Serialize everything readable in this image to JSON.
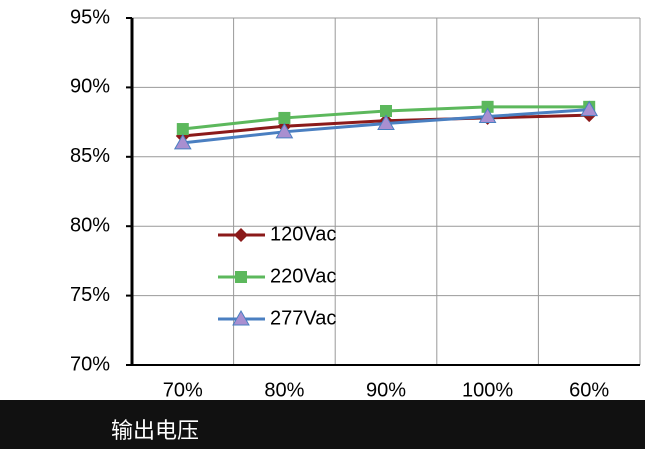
{
  "chart_data": {
    "type": "line",
    "x_label": "输出电压",
    "categories": [
      "70%",
      "80%",
      "90%",
      "100%",
      "60%"
    ],
    "series": [
      {
        "name": "120Vac",
        "color": "#8b1a1a",
        "marker": "diamond",
        "values": [
          86.5,
          87.2,
          87.6,
          87.8,
          88.0
        ]
      },
      {
        "name": "220Vac",
        "color": "#5cb85c",
        "marker": "square",
        "values": [
          87.0,
          87.8,
          88.3,
          88.6,
          88.6
        ]
      },
      {
        "name": "277Vac",
        "color": "#4a7fc1",
        "marker": "triangle",
        "values": [
          86.0,
          86.8,
          87.4,
          87.9,
          88.4
        ]
      }
    ],
    "ylim": [
      70,
      95
    ],
    "yticks": [
      {
        "value": 70,
        "label": "70%"
      },
      {
        "value": 75,
        "label": "75%"
      },
      {
        "value": 80,
        "label": "80%"
      },
      {
        "value": 85,
        "label": "85%"
      },
      {
        "value": 90,
        "label": "90%"
      },
      {
        "value": 95,
        "label": "95%"
      }
    ],
    "grid": true
  }
}
